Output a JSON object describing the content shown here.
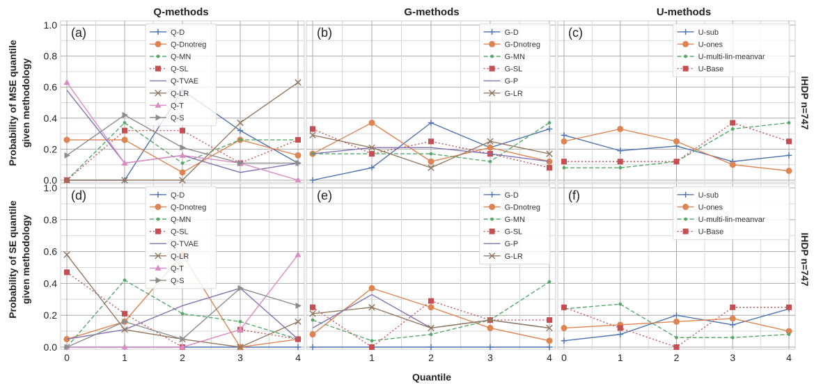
{
  "column_titles": [
    "Q-methods",
    "G-methods",
    "U-methods"
  ],
  "row_titles": [
    "IHDP n=747",
    "IHDP n=747"
  ],
  "ylabels": [
    [
      "Probability of MSE quantile",
      "given methodology"
    ],
    [
      "Probability of SE quantile",
      "given methodology"
    ]
  ],
  "xlabel": "Quantile",
  "chart_data": [
    {
      "type": "line",
      "panel": "(a)",
      "x": [
        0,
        1,
        2,
        3,
        4
      ],
      "xlim": [
        0,
        4
      ],
      "ylim": [
        0,
        1
      ],
      "grid": true,
      "legend": "top-center",
      "yticks": [
        0,
        0.2,
        0.4,
        0.6,
        0.8,
        1.0
      ],
      "xticks": [],
      "series": [
        {
          "name": "Q-D",
          "color": "#4c72b0",
          "style": "solid",
          "marker": "plus",
          "values": [
            0.0,
            0.0,
            0.58,
            0.32,
            0.11
          ]
        },
        {
          "name": "Q-Dnotreg",
          "color": "#dd8452",
          "style": "solid",
          "marker": "circle",
          "values": [
            0.26,
            0.26,
            0.05,
            0.26,
            0.16
          ]
        },
        {
          "name": "Q-MN",
          "color": "#55a868",
          "style": "dashed",
          "marker": "dot",
          "values": [
            0.0,
            0.37,
            0.11,
            0.26,
            0.26
          ]
        },
        {
          "name": "Q-SL",
          "color": "#c44e52",
          "style": "dotted",
          "marker": "square",
          "values": [
            0.0,
            0.32,
            0.32,
            0.11,
            0.26
          ]
        },
        {
          "name": "Q-TVAE",
          "color": "#8172b3",
          "style": "solid",
          "marker": "none",
          "values": [
            0.58,
            0.11,
            0.16,
            0.05,
            0.11
          ]
        },
        {
          "name": "Q-LR",
          "color": "#937860",
          "style": "solid",
          "marker": "x",
          "values": [
            0.0,
            0.0,
            0.0,
            0.37,
            0.63
          ]
        },
        {
          "name": "Q-T",
          "color": "#da8bc3",
          "style": "solid",
          "marker": "triangle-up",
          "values": [
            0.63,
            0.11,
            0.16,
            0.11,
            0.0
          ]
        },
        {
          "name": "Q-S",
          "color": "#8c8c8c",
          "style": "solid",
          "marker": "triangle-right",
          "values": [
            0.16,
            0.42,
            0.21,
            0.11,
            0.11
          ]
        }
      ]
    },
    {
      "type": "line",
      "panel": "(b)",
      "x": [
        0,
        1,
        2,
        3,
        4
      ],
      "xlim": [
        0,
        4
      ],
      "ylim": [
        0,
        1
      ],
      "grid": true,
      "legend": "top-right",
      "yticks": [],
      "xticks": [],
      "series": [
        {
          "name": "G-D",
          "color": "#4c72b0",
          "style": "solid",
          "marker": "plus",
          "values": [
            0.0,
            0.08,
            0.37,
            0.21,
            0.33
          ]
        },
        {
          "name": "G-Dnotreg",
          "color": "#dd8452",
          "style": "solid",
          "marker": "circle",
          "values": [
            0.17,
            0.37,
            0.12,
            0.21,
            0.12
          ]
        },
        {
          "name": "G-MN",
          "color": "#55a868",
          "style": "dashed",
          "marker": "dot",
          "values": [
            0.17,
            0.17,
            0.17,
            0.12,
            0.37
          ]
        },
        {
          "name": "G-SL",
          "color": "#c44e52",
          "style": "dotted",
          "marker": "square",
          "values": [
            0.33,
            0.17,
            0.25,
            0.17,
            0.08
          ]
        },
        {
          "name": "G-P",
          "color": "#8172b3",
          "style": "solid",
          "marker": "none",
          "values": [
            0.17,
            0.21,
            0.21,
            0.17,
            0.12
          ]
        },
        {
          "name": "G-LR",
          "color": "#937860",
          "style": "solid",
          "marker": "x",
          "values": [
            0.29,
            0.21,
            0.08,
            0.25,
            0.17
          ]
        }
      ]
    },
    {
      "type": "line",
      "panel": "(c)",
      "x": [
        0,
        1,
        2,
        3,
        4
      ],
      "xlim": [
        0,
        4
      ],
      "ylim": [
        0,
        1
      ],
      "grid": true,
      "legend": "top-right",
      "yticks": [],
      "xticks": [],
      "series": [
        {
          "name": "U-sub",
          "color": "#4c72b0",
          "style": "solid",
          "marker": "plus",
          "values": [
            0.29,
            0.19,
            0.22,
            0.12,
            0.16
          ]
        },
        {
          "name": "U-ones",
          "color": "#dd8452",
          "style": "solid",
          "marker": "circle",
          "values": [
            0.25,
            0.33,
            0.25,
            0.1,
            0.06
          ]
        },
        {
          "name": "U-multi-lin-meanvar",
          "color": "#55a868",
          "style": "dashed",
          "marker": "dot",
          "values": [
            0.08,
            0.08,
            0.12,
            0.33,
            0.37
          ]
        },
        {
          "name": "U-Base",
          "color": "#c44e52",
          "style": "dotted",
          "marker": "square",
          "values": [
            0.12,
            0.12,
            0.12,
            0.37,
            0.25
          ]
        }
      ]
    },
    {
      "type": "line",
      "panel": "(d)",
      "x": [
        0,
        1,
        2,
        3,
        4
      ],
      "xlim": [
        0,
        4
      ],
      "ylim": [
        0,
        1
      ],
      "grid": true,
      "legend": "top-center",
      "yticks": [
        0,
        0.2,
        0.4,
        0.6,
        0.8,
        1.0
      ],
      "xticks": [
        0,
        1,
        2,
        3,
        4
      ],
      "series": [
        {
          "name": "Q-D",
          "color": "#4c72b0",
          "style": "solid",
          "marker": "plus",
          "values": [
            0.0,
            0.0,
            0.0,
            0.0,
            0.0
          ]
        },
        {
          "name": "Q-Dnotreg",
          "color": "#dd8452",
          "style": "solid",
          "marker": "circle",
          "values": [
            0.05,
            0.16,
            0.58,
            0.0,
            0.05
          ]
        },
        {
          "name": "Q-MN",
          "color": "#55a868",
          "style": "dashed",
          "marker": "dot",
          "values": [
            0.0,
            0.42,
            0.21,
            0.16,
            0.05
          ]
        },
        {
          "name": "Q-SL",
          "color": "#c44e52",
          "style": "dotted",
          "marker": "square",
          "values": [
            0.47,
            0.21,
            0.0,
            0.11,
            0.05
          ]
        },
        {
          "name": "Q-TVAE",
          "color": "#8172b3",
          "style": "solid",
          "marker": "none",
          "values": [
            0.05,
            0.11,
            0.26,
            0.37,
            0.05
          ]
        },
        {
          "name": "Q-LR",
          "color": "#937860",
          "style": "solid",
          "marker": "x",
          "values": [
            0.58,
            0.11,
            0.05,
            0.0,
            0.16
          ]
        },
        {
          "name": "Q-T",
          "color": "#da8bc3",
          "style": "solid",
          "marker": "triangle-up",
          "values": [
            0.0,
            0.0,
            0.0,
            0.11,
            0.58
          ]
        },
        {
          "name": "Q-S",
          "color": "#8c8c8c",
          "style": "solid",
          "marker": "triangle-right",
          "values": [
            0.0,
            0.16,
            0.05,
            0.37,
            0.26
          ]
        }
      ]
    },
    {
      "type": "line",
      "panel": "(e)",
      "x": [
        0,
        1,
        2,
        3,
        4
      ],
      "xlim": [
        0,
        4
      ],
      "ylim": [
        0,
        1
      ],
      "grid": true,
      "legend": "top-right",
      "yticks": [],
      "xticks": [
        1,
        2,
        3,
        4
      ],
      "series": [
        {
          "name": "G-D",
          "color": "#4c72b0",
          "style": "solid",
          "marker": "plus",
          "values": [
            0.0,
            0.0,
            0.0,
            0.0,
            0.0
          ]
        },
        {
          "name": "G-Dnotreg",
          "color": "#dd8452",
          "style": "solid",
          "marker": "circle",
          "values": [
            0.08,
            0.37,
            0.25,
            0.12,
            0.04
          ]
        },
        {
          "name": "G-MN",
          "color": "#55a868",
          "style": "dashed",
          "marker": "dot",
          "values": [
            0.17,
            0.04,
            0.08,
            0.17,
            0.41
          ]
        },
        {
          "name": "G-SL",
          "color": "#c44e52",
          "style": "dotted",
          "marker": "square",
          "values": [
            0.25,
            0.0,
            0.29,
            0.17,
            0.17
          ]
        },
        {
          "name": "G-P",
          "color": "#8172b3",
          "style": "solid",
          "marker": "none",
          "values": [
            0.12,
            0.33,
            0.12,
            0.17,
            0.12
          ]
        },
        {
          "name": "G-LR",
          "color": "#937860",
          "style": "solid",
          "marker": "x",
          "values": [
            0.21,
            0.25,
            0.12,
            0.17,
            0.12
          ]
        }
      ]
    },
    {
      "type": "line",
      "panel": "(f)",
      "x": [
        0,
        1,
        2,
        3,
        4
      ],
      "xlim": [
        0,
        4
      ],
      "ylim": [
        0,
        1
      ],
      "grid": true,
      "legend": "top-right",
      "yticks": [],
      "xticks": [
        0,
        1,
        2,
        3,
        4
      ],
      "series": [
        {
          "name": "U-sub",
          "color": "#4c72b0",
          "style": "solid",
          "marker": "plus",
          "values": [
            0.04,
            0.08,
            0.2,
            0.14,
            0.24
          ]
        },
        {
          "name": "U-ones",
          "color": "#dd8452",
          "style": "solid",
          "marker": "circle",
          "values": [
            0.12,
            0.14,
            0.16,
            0.18,
            0.1
          ]
        },
        {
          "name": "U-multi-lin-meanvar",
          "color": "#55a868",
          "style": "dashed",
          "marker": "dot",
          "values": [
            0.24,
            0.27,
            0.06,
            0.06,
            0.08
          ]
        },
        {
          "name": "U-Base",
          "color": "#c44e52",
          "style": "dotted",
          "marker": "square",
          "values": [
            0.25,
            0.12,
            0.0,
            0.25,
            0.25
          ]
        }
      ]
    }
  ]
}
